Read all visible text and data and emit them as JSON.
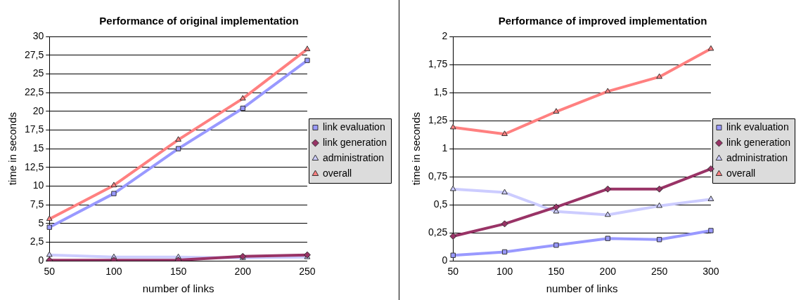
{
  "chart_data": [
    {
      "type": "line",
      "title": "Performance of original implementation",
      "xlabel": "number of links",
      "ylabel": "time in seconds",
      "categories": [
        "50",
        "100",
        "150",
        "200",
        "250"
      ],
      "series": [
        {
          "name": "link evaluation",
          "color": "#9999ff",
          "marker": "square",
          "values": [
            4.5,
            9,
            15,
            20.4,
            26.8
          ]
        },
        {
          "name": "link generation",
          "color": "#993366",
          "marker": "diamond",
          "values": [
            0.1,
            0.1,
            0.1,
            0.6,
            0.8
          ]
        },
        {
          "name": "administration",
          "color": "#ccccff",
          "marker": "triangle",
          "values": [
            0.8,
            0.5,
            0.5,
            0.4,
            0.5
          ]
        },
        {
          "name": "overall",
          "color": "#ff8080",
          "marker": "triangle",
          "values": [
            5.6,
            10.1,
            16.2,
            21.7,
            28.3
          ]
        }
      ],
      "ylim": [
        0,
        30
      ],
      "yticks": [
        0,
        {
          "value": 2.5,
          "label": "2,5"
        },
        5,
        {
          "value": 7.5,
          "label": "7,5"
        },
        10,
        {
          "value": 12.5,
          "label": "12,5"
        },
        15,
        {
          "value": 17.5,
          "label": "17,5"
        },
        20,
        {
          "value": 22.5,
          "label": "22,5"
        },
        25,
        {
          "value": 27.5,
          "label": "27,5"
        },
        30
      ],
      "grid": "y",
      "legend": "right",
      "line_style": "solid"
    },
    {
      "type": "line",
      "title": "Performance of improved implementation",
      "xlabel": "number of links",
      "ylabel": "time in seconds",
      "categories": [
        "50",
        "100",
        "150",
        "200",
        "250",
        "300"
      ],
      "series": [
        {
          "name": "link evaluation",
          "color": "#9999ff",
          "marker": "square",
          "values": [
            0.05,
            0.08,
            0.14,
            0.2,
            0.19,
            0.27
          ]
        },
        {
          "name": "link generation",
          "color": "#993366",
          "marker": "diamond",
          "values": [
            0.22,
            0.33,
            0.48,
            0.64,
            0.64,
            0.82
          ]
        },
        {
          "name": "administration",
          "color": "#ccccff",
          "marker": "triangle",
          "values": [
            0.64,
            0.61,
            0.44,
            0.41,
            0.49,
            0.55
          ]
        },
        {
          "name": "overall",
          "color": "#ff8080",
          "marker": "triangle",
          "values": [
            1.19,
            1.13,
            1.33,
            1.51,
            1.64,
            1.89
          ]
        }
      ],
      "ylim": [
        0,
        2
      ],
      "yticks": [
        0,
        {
          "value": 0.25,
          "label": "0,25"
        },
        {
          "value": 0.5,
          "label": "0,5"
        },
        {
          "value": 0.75,
          "label": "0,75"
        },
        1,
        {
          "value": 1.25,
          "label": "1,25"
        },
        {
          "value": 1.5,
          "label": "1,5"
        },
        {
          "value": 1.75,
          "label": "1,75"
        },
        2
      ],
      "grid": "y",
      "legend": "right",
      "line_style": "solid"
    }
  ]
}
